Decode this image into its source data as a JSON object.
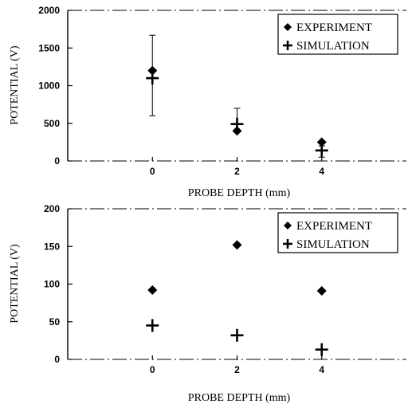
{
  "chart_data": [
    {
      "type": "scatter",
      "xlabel": "PROBE DEPTH (mm)",
      "ylabel": "POTENTIAL (V)",
      "xlim": [
        -2,
        6
      ],
      "ylim": [
        0,
        2000
      ],
      "xticks": [
        0,
        2,
        4
      ],
      "yticks": [
        0,
        500,
        1000,
        1500,
        2000
      ],
      "legend_position": "top-right",
      "series": [
        {
          "name": "EXPERIMENT",
          "marker": "diamond",
          "x": [
            0,
            2,
            4
          ],
          "y": [
            1200,
            400,
            250
          ]
        },
        {
          "name": "SIMULATION",
          "marker": "plus",
          "x": [
            0,
            2,
            4
          ],
          "y": [
            1100,
            490,
            140
          ],
          "error_low": [
            600,
            380,
            50
          ],
          "error_high": [
            1670,
            700,
            200
          ]
        }
      ]
    },
    {
      "type": "scatter",
      "xlabel": "PROBE DEPTH (mm)",
      "ylabel": "POTENTIAL (V)",
      "xlim": [
        -2,
        6
      ],
      "ylim": [
        0,
        200
      ],
      "xticks": [
        0,
        2,
        4
      ],
      "yticks": [
        0,
        50,
        100,
        150,
        200
      ],
      "legend_position": "top-right",
      "series": [
        {
          "name": "EXPERIMENT",
          "marker": "diamond",
          "x": [
            0,
            2,
            4
          ],
          "y": [
            92,
            152,
            91
          ]
        },
        {
          "name": "SIMULATION",
          "marker": "plus",
          "x": [
            0,
            2,
            4
          ],
          "y": [
            45,
            32,
            13
          ]
        }
      ]
    }
  ]
}
